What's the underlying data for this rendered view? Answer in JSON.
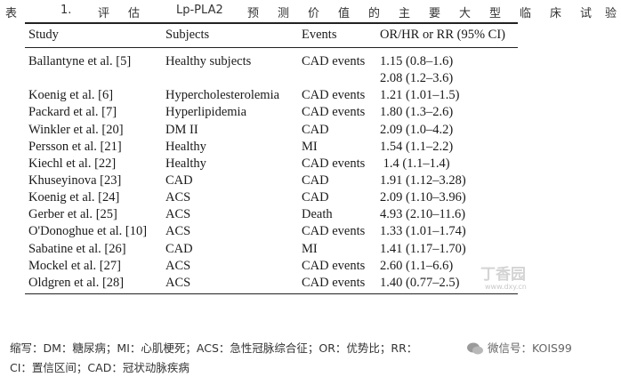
{
  "caption": {
    "chars": [
      "表",
      "1.",
      "评",
      "估",
      "Lp-PLA2",
      "预",
      "测",
      "价",
      "值",
      "的",
      "主",
      "要",
      "大",
      "型",
      "临",
      "床",
      "试",
      "验"
    ]
  },
  "table": {
    "headers": [
      "Study",
      "Subjects",
      "Events",
      "OR/HR or RR (95% CI)"
    ],
    "rows": [
      {
        "study": "Ballantyne et al. ",
        "ref": "[5]",
        "subjects": "Healthy subjects",
        "events": "CAD events",
        "value": "1.15 (0.8–1.6)"
      },
      {
        "study": "",
        "ref": "",
        "subjects": "",
        "events": "",
        "value": "2.08 (1.2–3.6)"
      },
      {
        "study": "Koenig et al. ",
        "ref": "[6]",
        "subjects": "Hypercholesterolemia",
        "events": "CAD events",
        "value": "1.21 (1.01–1.5)"
      },
      {
        "study": "Packard et al. ",
        "ref": "[7]",
        "subjects": "Hyperlipidemia",
        "events": "CAD events",
        "value": "1.80 (1.3–2.6)"
      },
      {
        "study": "Winkler et al. ",
        "ref": "[20]",
        "subjects": "DM II",
        "events": "CAD",
        "value": "2.09 (1.0–4.2)"
      },
      {
        "study": "Persson et al. ",
        "ref": "[21]",
        "subjects": "Healthy",
        "events": "MI",
        "value": "1.54 (1.1–2.2)"
      },
      {
        "study": "Kiechl et al. ",
        "ref": "[22]",
        "subjects": "Healthy",
        "events": "CAD events",
        "value": " 1.4 (1.1–1.4)"
      },
      {
        "study": "Khuseyinova ",
        "ref": "[23]",
        "subjects": "CAD",
        "events": "CAD",
        "value": "1.91 (1.12–3.28)"
      },
      {
        "study": "Koenig et al. ",
        "ref": "[24]",
        "subjects": "ACS",
        "events": "CAD",
        "value": "2.09 (1.10–3.96)"
      },
      {
        "study": "Gerber et al. ",
        "ref": "[25]",
        "subjects": "ACS",
        "events": "Death",
        "value": "4.93 (2.10–11.6)"
      },
      {
        "study": "O'Donoghue et al. ",
        "ref": "[10]",
        "subjects": "ACS",
        "events": "CAD events",
        "value": "1.33 (1.01–1.74)"
      },
      {
        "study": "Sabatine et al. ",
        "ref": "[26]",
        "subjects": "CAD",
        "events": "MI",
        "value": "1.41 (1.17–1.70)"
      },
      {
        "study": "Mockel et al. ",
        "ref": "[27]",
        "subjects": "ACS",
        "events": "CAD events",
        "value": "2.60 (1.1–6.6)"
      },
      {
        "study": "Oldgren et al. ",
        "ref": "[28]",
        "subjects": "ACS",
        "events": "CAD events",
        "value": "1.40 (0.77–2.5)"
      }
    ]
  },
  "footnote": {
    "line1": "缩写：DM：糖尿病；MI：心肌梗死；ACS：急性冠脉综合征；OR：优势比；RR：",
    "line1_tail": "微信号：KOIS99",
    "line2": "CI：置信区间；CAD：冠状动脉疾病"
  },
  "watermark": {
    "site_text": "丁香园",
    "site_url": "www.dxy.cn"
  },
  "colors": {
    "reference_link": "#2b5fa8",
    "rule": "#222222",
    "watermark": "#c9c9c9"
  }
}
